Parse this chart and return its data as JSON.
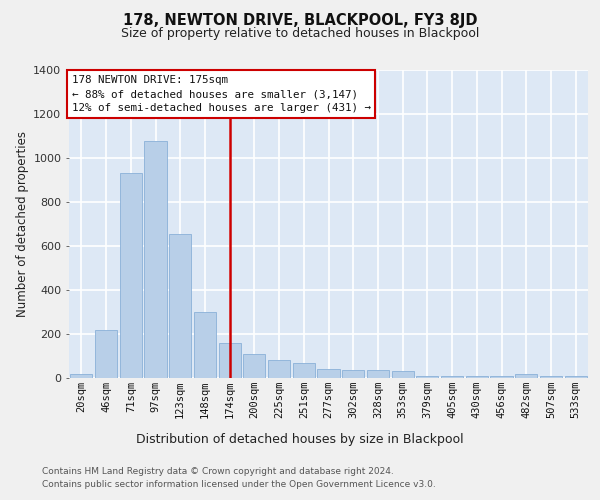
{
  "title": "178, NEWTON DRIVE, BLACKPOOL, FY3 8JD",
  "subtitle": "Size of property relative to detached houses in Blackpool",
  "xlabel": "Distribution of detached houses by size in Blackpool",
  "ylabel": "Number of detached properties",
  "footer_line1": "Contains HM Land Registry data © Crown copyright and database right 2024.",
  "footer_line2": "Contains public sector information licensed under the Open Government Licence v3.0.",
  "bar_color": "#b8cfe8",
  "bar_edge_color": "#8ab0d8",
  "background_color": "#dde8f5",
  "grid_color": "#ffffff",
  "vline_color": "#cc0000",
  "annotation_text_line1": "178 NEWTON DRIVE: 175sqm",
  "annotation_text_line2": "← 88% of detached houses are smaller (3,147)",
  "annotation_text_line3": "12% of semi-detached houses are larger (431) →",
  "categories": [
    "20sqm",
    "46sqm",
    "71sqm",
    "97sqm",
    "123sqm",
    "148sqm",
    "174sqm",
    "200sqm",
    "225sqm",
    "251sqm",
    "277sqm",
    "302sqm",
    "328sqm",
    "353sqm",
    "379sqm",
    "405sqm",
    "430sqm",
    "456sqm",
    "482sqm",
    "507sqm",
    "533sqm"
  ],
  "values": [
    18,
    218,
    930,
    1075,
    655,
    300,
    158,
    105,
    80,
    65,
    38,
    35,
    35,
    28,
    5,
    5,
    5,
    5,
    18,
    5,
    5
  ],
  "ylim": [
    0,
    1400
  ],
  "yticks": [
    0,
    200,
    400,
    600,
    800,
    1000,
    1200,
    1400
  ],
  "vline_x_index": 6,
  "fig_bg": "#f0f0f0"
}
